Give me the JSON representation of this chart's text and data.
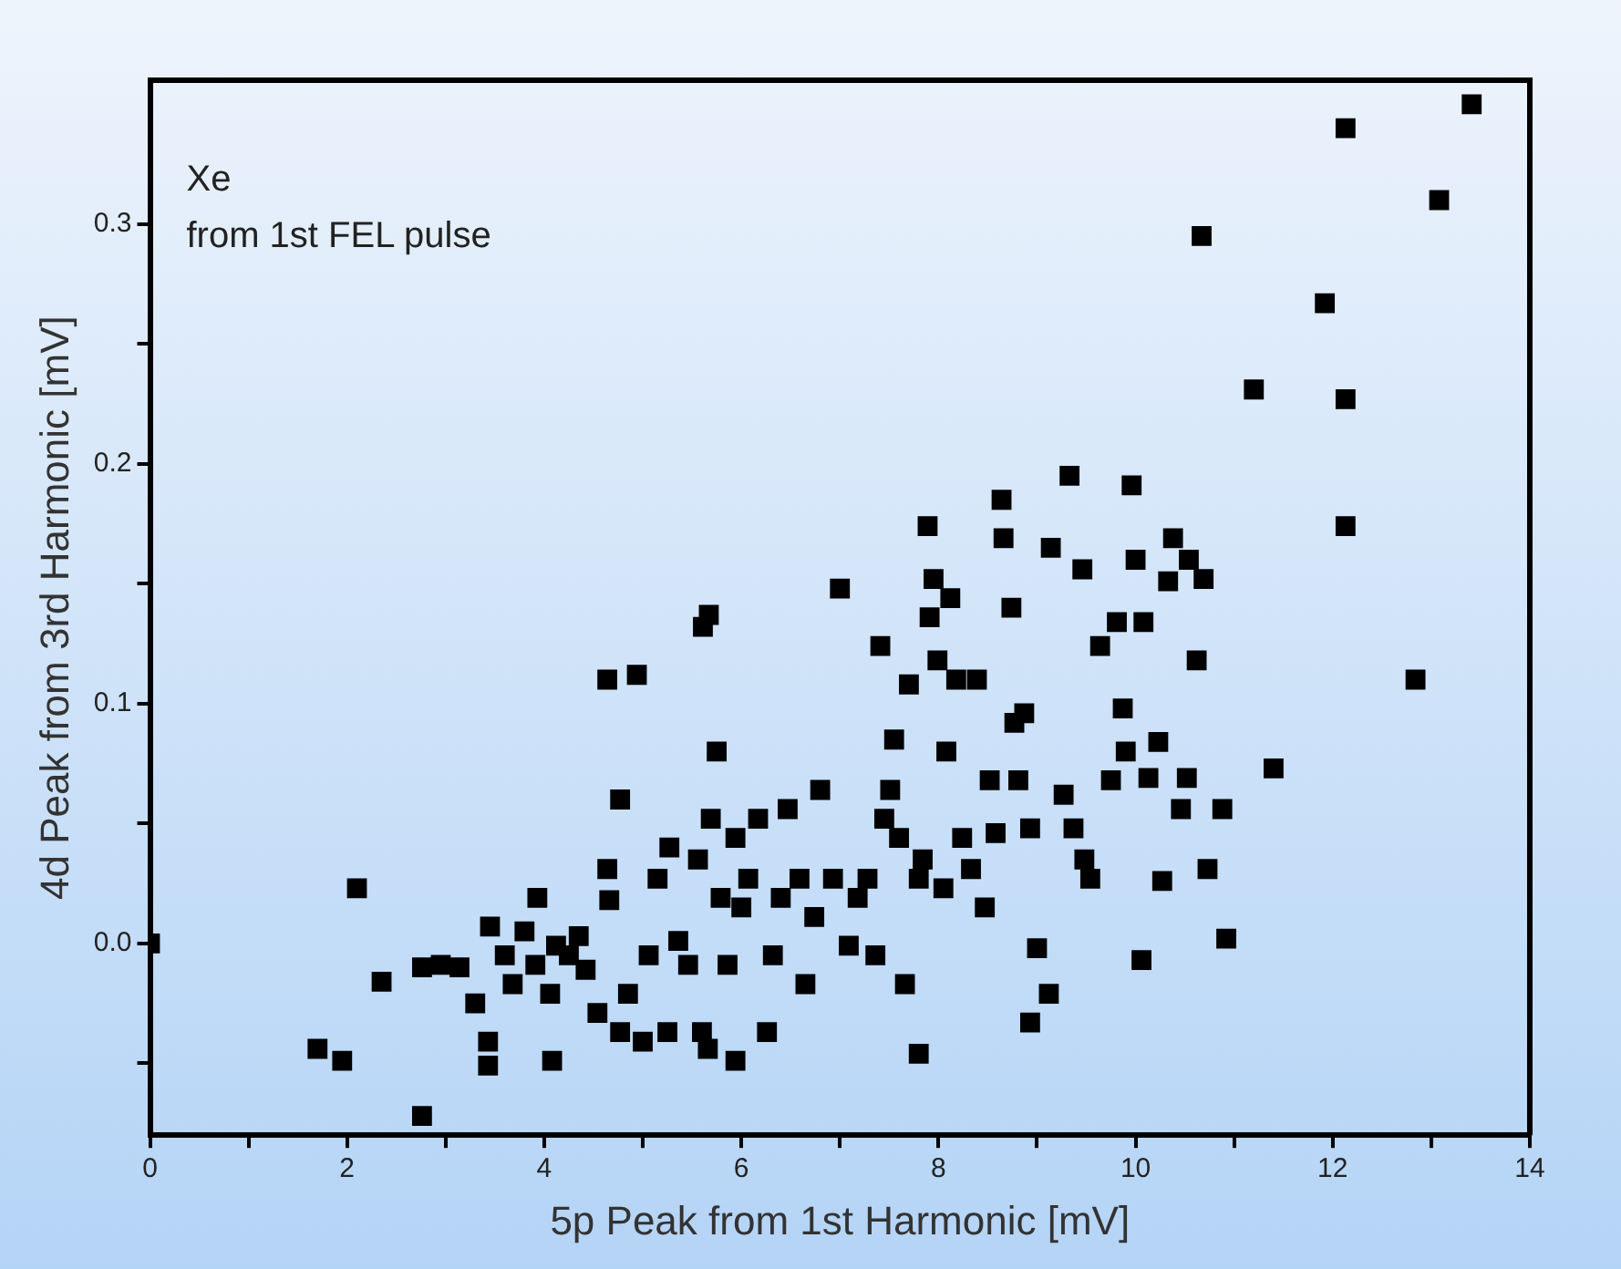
{
  "chart_data": {
    "type": "scatter",
    "xlabel": "5p Peak from 1st Harmonic [mV]",
    "ylabel": "4d Peak from 3rd Harmonic [mV]",
    "annotations": [
      "Xe",
      "from 1st FEL pulse"
    ],
    "marker": "square",
    "grid": false,
    "legend": false,
    "xlim": [
      0,
      14
    ],
    "ylim": [
      -0.08,
      0.36
    ],
    "xticks": [
      0,
      {
        "value": 1,
        "label": null
      },
      2,
      {
        "value": 3,
        "label": null
      },
      4,
      {
        "value": 5,
        "label": null
      },
      6,
      {
        "value": 7,
        "label": null
      },
      8,
      {
        "value": 9,
        "label": null
      },
      10,
      {
        "value": 11,
        "label": null
      },
      12,
      {
        "value": 13,
        "label": null
      },
      14
    ],
    "yticks": [
      {
        "value": -0.05,
        "label": null
      },
      {
        "value": 0,
        "label": "0.0"
      },
      {
        "value": 0.05,
        "label": null
      },
      0.1,
      {
        "value": 0.15,
        "label": null
      },
      0.2,
      {
        "value": 0.25,
        "label": null
      },
      0.3
    ],
    "series": [
      {
        "color": "#000000",
        "x": [
          0,
          1.7,
          1.95,
          2.1,
          2.35,
          2.76,
          2.76,
          2.95,
          3.14,
          3.3,
          3.45,
          3.43,
          3.43,
          3.6,
          3.68,
          3.8,
          3.93,
          3.91,
          4.06,
          4.08,
          4.12,
          4.25,
          4.35,
          4.42,
          4.54,
          4.64,
          4.64,
          4.66,
          4.77,
          4.77,
          4.85,
          4.94,
          5.0,
          5.06,
          5.15,
          5.25,
          5.27,
          5.36,
          5.46,
          5.56,
          5.61,
          5.67,
          5.6,
          5.66,
          5.69,
          5.75,
          5.79,
          5.86,
          5.94,
          5.94,
          6.0,
          6.07,
          6.17,
          6.26,
          6.32,
          6.4,
          6.47,
          6.59,
          6.65,
          6.74,
          6.8,
          6.93,
          7.0,
          7.09,
          7.18,
          7.28,
          7.36,
          7.41,
          7.45,
          7.51,
          7.55,
          7.6,
          7.66,
          7.7,
          7.8,
          7.8,
          7.84,
          7.89,
          7.91,
          7.95,
          7.99,
          8.05,
          8.08,
          8.12,
          8.18,
          8.24,
          8.33,
          8.39,
          8.47,
          8.52,
          8.58,
          8.64,
          8.66,
          8.74,
          8.77,
          8.81,
          8.87,
          8.93,
          9.0,
          9.12,
          8.93,
          9.14,
          9.27,
          9.33,
          9.37,
          9.46,
          9.48,
          9.54,
          9.64,
          9.75,
          9.81,
          9.87,
          9.9,
          9.96,
          10.0,
          10.06,
          10.08,
          10.13,
          10.23,
          10.27,
          10.33,
          10.38,
          10.46,
          10.52,
          10.54,
          10.62,
          10.67,
          10.69,
          10.73,
          10.88,
          10.92,
          11.2,
          11.4,
          11.92,
          12.13,
          12.13,
          12.13,
          12.84,
          13.08,
          13.41
        ],
        "values": [
          0,
          -0.044,
          -0.049,
          0.023,
          -0.016,
          -0.072,
          -0.01,
          -0.009,
          -0.01,
          -0.025,
          0.007,
          -0.041,
          -0.051,
          -0.005,
          -0.017,
          0.005,
          0.019,
          -0.009,
          -0.021,
          -0.049,
          -0.001,
          -0.005,
          0.003,
          -0.011,
          -0.029,
          0.031,
          0.11,
          0.018,
          0.06,
          -0.037,
          -0.021,
          0.112,
          -0.041,
          -0.005,
          0.027,
          -0.037,
          0.04,
          0.001,
          -0.009,
          0.035,
          0.132,
          0.137,
          -0.037,
          -0.044,
          0.052,
          0.08,
          0.019,
          -0.009,
          0.044,
          -0.049,
          0.015,
          0.027,
          0.052,
          -0.037,
          -0.005,
          0.019,
          0.056,
          0.027,
          -0.017,
          0.011,
          0.064,
          0.027,
          0.148,
          -0.001,
          0.019,
          0.027,
          -0.005,
          0.124,
          0.052,
          0.064,
          0.085,
          0.044,
          -0.017,
          0.108,
          0.027,
          -0.046,
          0.035,
          0.174,
          0.136,
          0.152,
          0.118,
          0.023,
          0.08,
          0.144,
          0.11,
          0.044,
          0.031,
          0.11,
          0.015,
          0.068,
          0.046,
          0.185,
          0.169,
          0.14,
          0.092,
          0.068,
          0.096,
          0.048,
          -0.002,
          -0.021,
          -0.033,
          0.165,
          0.062,
          0.195,
          0.048,
          0.156,
          0.035,
          0.027,
          0.124,
          0.068,
          0.134,
          0.098,
          0.08,
          0.191,
          0.16,
          -0.007,
          0.134,
          0.069,
          0.084,
          0.026,
          0.151,
          0.169,
          0.056,
          0.069,
          0.16,
          0.118,
          0.295,
          0.152,
          0.031,
          0.056,
          0.002,
          0.231,
          0.073,
          0.267,
          0.34,
          0.227,
          0.174,
          0.11,
          0.31,
          0.35
        ]
      }
    ]
  }
}
